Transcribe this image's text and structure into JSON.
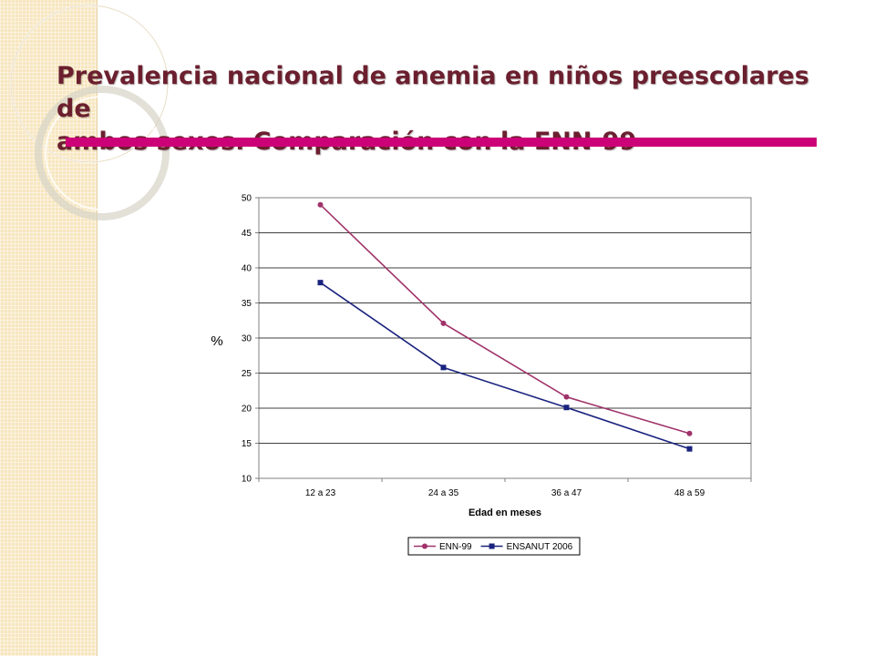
{
  "slide": {
    "title_line1": "Prevalencia nacional de anemia en niños preescolares de",
    "title_line2": "ambos sexos. Comparación con la ENN-99",
    "accent_color": "#cc0077",
    "title_color": "#6b1f2e"
  },
  "chart_data": {
    "type": "line",
    "categories": [
      "12 a 23",
      "24 a 35",
      "36 a 47",
      "48 a 59"
    ],
    "series": [
      {
        "name": "ENN-99",
        "values": [
          49.0,
          32.1,
          21.6,
          16.4
        ],
        "color": "#a0336a",
        "marker": "circle"
      },
      {
        "name": "ENSANUT 2006",
        "values": [
          37.9,
          25.8,
          20.1,
          14.2
        ],
        "color": "#1a237e",
        "marker": "square"
      }
    ],
    "xlabel": "Edad en meses",
    "ylabel": "%",
    "ylim": [
      10,
      50
    ],
    "yticks": [
      10,
      15,
      20,
      25,
      30,
      35,
      40,
      45,
      50
    ],
    "grid": true,
    "legend": "bottom"
  }
}
